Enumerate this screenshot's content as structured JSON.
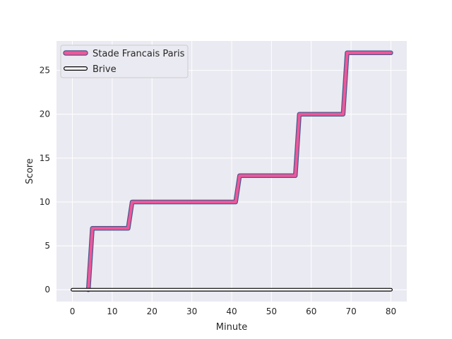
{
  "chart_data": {
    "type": "line",
    "xlabel": "Minute",
    "ylabel": "Score",
    "xlim": [
      -4,
      84
    ],
    "ylim": [
      -1.35,
      28.35
    ],
    "xticks": [
      0,
      10,
      20,
      30,
      40,
      50,
      60,
      70,
      80
    ],
    "yticks": [
      0,
      5,
      10,
      15,
      20,
      25
    ],
    "grid": true,
    "legend_position": "top-left",
    "series": [
      {
        "name": "Stade Francais Paris",
        "color": "#f0569a",
        "edge_color": "#4a5a8c",
        "x": [
          4,
          5,
          14,
          15,
          41,
          42,
          56,
          57,
          68,
          69,
          80
        ],
        "y": [
          0,
          7,
          7,
          10,
          10,
          13,
          13,
          20,
          20,
          27,
          27
        ]
      },
      {
        "name": "Brive",
        "color": "#ffffff",
        "edge_color": "#000000",
        "x": [
          0,
          80
        ],
        "y": [
          0,
          0
        ]
      }
    ]
  }
}
